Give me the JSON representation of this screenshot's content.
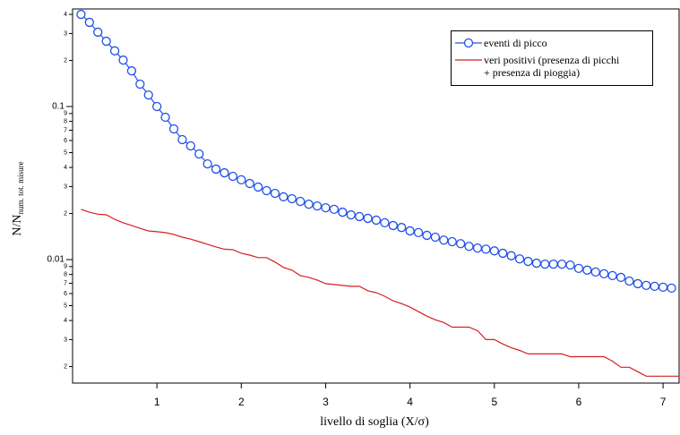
{
  "chart_data": {
    "type": "line",
    "x_label": "livello di soglia (X/σ)",
    "y_label": {
      "text": "N/N",
      "subscript": "num. tot. misure"
    },
    "log_y": true,
    "x": [
      0.1,
      0.2,
      0.3,
      0.4,
      0.5,
      0.6,
      0.7,
      0.8,
      0.9,
      1.0,
      1.1,
      1.2,
      1.3,
      1.4,
      1.5,
      1.6,
      1.7,
      1.8,
      1.9,
      2.0,
      2.1,
      2.2,
      2.3,
      2.4,
      2.5,
      2.6,
      2.7,
      2.8,
      2.9,
      3.0,
      3.1,
      3.2,
      3.3,
      3.4,
      3.5,
      3.6,
      3.7,
      3.8,
      3.9,
      4.0,
      4.1,
      4.2,
      4.3,
      4.4,
      4.5,
      4.6,
      4.7,
      4.8,
      4.9,
      5.0,
      5.1,
      5.2,
      5.3,
      5.4,
      5.5,
      5.6,
      5.7,
      5.8,
      5.9,
      6.0,
      6.1,
      6.2,
      6.3,
      6.4,
      6.5,
      6.6,
      6.7,
      6.8,
      6.9,
      7.0,
      7.1,
      7.2
    ],
    "series": [
      {
        "name": "eventi di picco",
        "color": "#2050e8",
        "marker": "circle",
        "values": [
          0.4,
          0.355,
          0.306,
          0.267,
          0.231,
          0.201,
          0.171,
          0.14,
          0.119,
          0.1,
          0.0851,
          0.0714,
          0.0608,
          0.0553,
          0.049,
          0.0422,
          0.039,
          0.0369,
          0.035,
          0.0332,
          0.0314,
          0.0298,
          0.0282,
          0.0271,
          0.0257,
          0.025,
          0.024,
          0.023,
          0.0224,
          0.0218,
          0.0213,
          0.0204,
          0.0196,
          0.0191,
          0.0186,
          0.0181,
          0.0174,
          0.0167,
          0.0162,
          0.0154,
          0.015,
          0.0144,
          0.014,
          0.0134,
          0.0131,
          0.0127,
          0.0122,
          0.0119,
          0.0117,
          0.0114,
          0.011,
          0.0106,
          0.0101,
          0.00973,
          0.00947,
          0.00934,
          0.00934,
          0.00934,
          0.00921,
          0.00876,
          0.00853,
          0.0083,
          0.00808,
          0.00786,
          0.00765,
          0.00724,
          0.00696,
          0.00678,
          0.00669,
          0.0066,
          0.00651,
          null
        ]
      },
      {
        "name": "veri positivi (presenza di picchi\n+ presenza di pioggia)",
        "color": "#d42020",
        "marker": "none",
        "values": [
          0.0213,
          0.0204,
          0.0198,
          0.0196,
          0.0183,
          0.0174,
          0.0167,
          0.016,
          0.0154,
          0.0152,
          0.015,
          0.0146,
          0.014,
          0.0136,
          0.0131,
          0.0126,
          0.0121,
          0.0117,
          0.0116,
          0.011,
          0.0107,
          0.0103,
          0.0103,
          0.00963,
          0.00888,
          0.00853,
          0.00786,
          0.00765,
          0.00735,
          0.00696,
          0.00687,
          0.00678,
          0.00669,
          0.00669,
          0.00625,
          0.00608,
          0.00576,
          0.00538,
          0.00516,
          0.00489,
          0.00457,
          0.00427,
          0.00404,
          0.00388,
          0.00362,
          0.00362,
          0.00362,
          0.00343,
          0.003,
          0.003,
          0.00281,
          0.00266,
          0.00255,
          0.00242,
          0.00242,
          0.00242,
          0.00242,
          0.00242,
          0.00232,
          0.00232,
          0.00232,
          0.00232,
          0.00232,
          0.00217,
          0.00198,
          0.00198,
          0.00185,
          0.00173,
          0.00173,
          0.00173,
          0.00173,
          0.00173
        ]
      }
    ],
    "xlim": [
      0,
      7.19
    ],
    "xticks": [
      1,
      2,
      3,
      4,
      5,
      6,
      7
    ],
    "ylim": [
      0.00156,
      0.434
    ],
    "yticks": [
      {
        "value": 0.4,
        "label": "4"
      },
      {
        "value": 0.3,
        "label": "3"
      },
      {
        "value": 0.2,
        "label": "2"
      },
      0.1,
      {
        "value": 0.09,
        "label": "9"
      },
      {
        "value": 0.08,
        "label": "8"
      },
      {
        "value": 0.07,
        "label": "7"
      },
      {
        "value": 0.06,
        "label": "6"
      },
      {
        "value": 0.05,
        "label": "5"
      },
      {
        "value": 0.04,
        "label": "4"
      },
      {
        "value": 0.03,
        "label": "3"
      },
      {
        "value": 0.02,
        "label": "2"
      },
      0.01,
      {
        "value": 0.009,
        "label": "9"
      },
      {
        "value": 0.008,
        "label": "8"
      },
      {
        "value": 0.007,
        "label": "7"
      },
      {
        "value": 0.006,
        "label": "6"
      },
      {
        "value": 0.005,
        "label": "5"
      },
      {
        "value": 0.004,
        "label": "4"
      },
      {
        "value": 0.003,
        "label": "3"
      },
      {
        "value": 0.002,
        "label": "2"
      }
    ],
    "grid": false,
    "legend": "top-right"
  }
}
